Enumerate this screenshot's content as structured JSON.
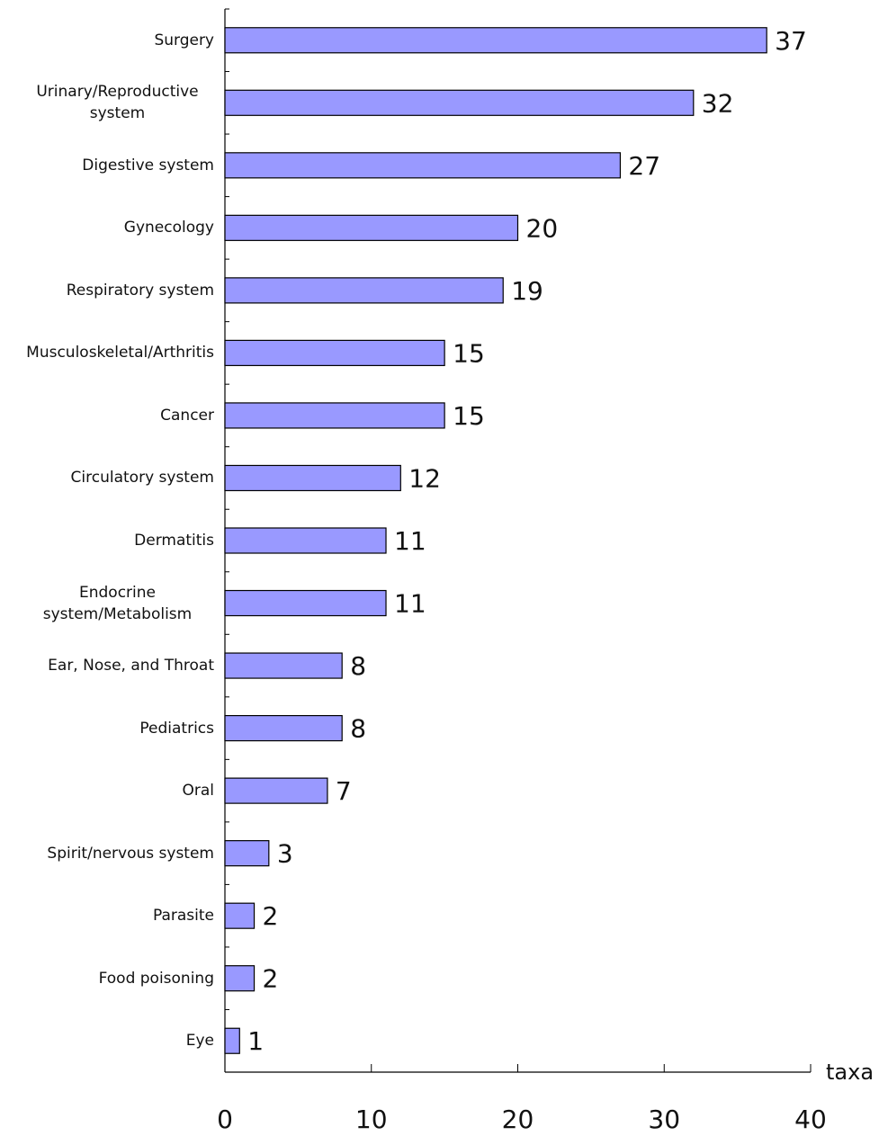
{
  "chart_data": {
    "type": "barh",
    "categories": [
      "Surgery",
      "Urinary/Reproductive system",
      "Digestive system",
      "Gynecology",
      "Respiratory system",
      "Musculoskeletal/Arthritis",
      "Cancer",
      "Circulatory system",
      "Dermatitis",
      "Endocrine system/Metabolism",
      "Ear, Nose, and Throat",
      "Pediatrics",
      "Oral",
      "Spirit/nervous system",
      "Parasite",
      "Food poisoning",
      "Eye"
    ],
    "values": [
      37,
      32,
      27,
      20,
      19,
      15,
      15,
      12,
      11,
      11,
      8,
      8,
      7,
      3,
      2,
      2,
      1
    ],
    "color": "#9999ff",
    "xlabel": "taxa",
    "xlim": [
      0,
      40
    ],
    "xticks": [
      0,
      10,
      20,
      30,
      40
    ],
    "grid": false
  }
}
